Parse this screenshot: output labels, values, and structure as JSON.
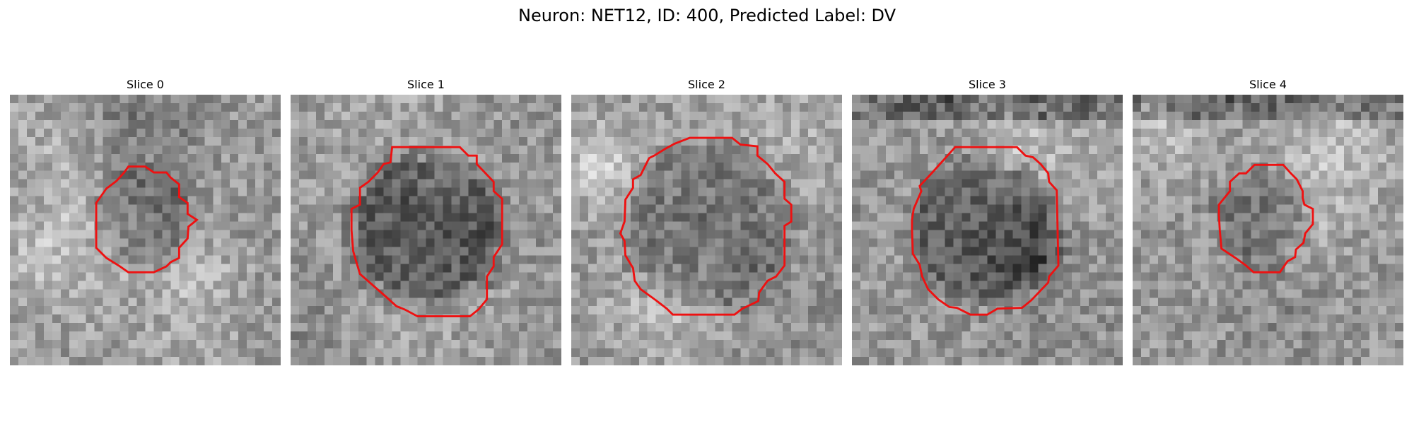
{
  "figure": {
    "title": "Neuron: NET12, ID: 400, Predicted Label: DV"
  },
  "colors": {
    "contour": "#ee1111",
    "background": "#ffffff"
  },
  "slices": [
    {
      "label": "Slice 0",
      "darkness": 0.45
    },
    {
      "label": "Slice 1",
      "darkness": 0.62
    },
    {
      "label": "Slice 2",
      "darkness": 0.35
    },
    {
      "label": "Slice 3",
      "darkness": 0.6
    },
    {
      "label": "Slice 4",
      "darkness": 0.42
    }
  ]
}
